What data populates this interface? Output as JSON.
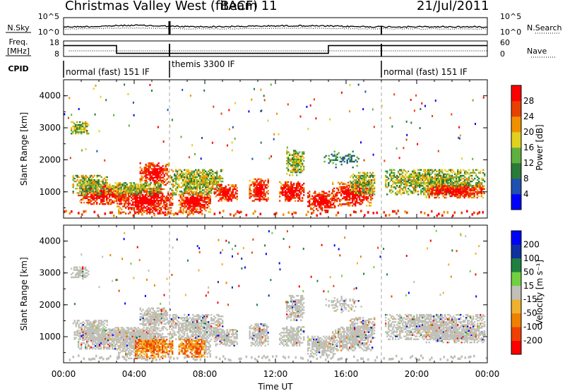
{
  "header": {
    "radar": "Christmas Valley West (fitACF)",
    "beam": "Beam 11",
    "date": "21/Jul/2011"
  },
  "strips": {
    "nsky_label": "N.Sky",
    "nsearch_label": "N.Search",
    "freq_label": "Freq.",
    "freq_unit": "[MHz]",
    "nave_label": "Nave",
    "cpid_label": "CPID",
    "nsky_ticks": [
      "10^5",
      "10^0"
    ],
    "nsearch_ticks": [
      "10^5",
      "10^0"
    ],
    "freq_ticks": [
      "18",
      "8"
    ],
    "nave_ticks": [
      "60",
      "0"
    ],
    "cpid_segments": [
      {
        "start": 0,
        "end": 6,
        "label": "normal (fast) 151 IF"
      },
      {
        "start": 6,
        "end": 18,
        "label": "themis 3300 IF"
      },
      {
        "start": 18,
        "end": 24,
        "label": "normal (fast) 151 IF"
      }
    ],
    "freq_steps": [
      {
        "start": 0,
        "end": 3,
        "value": 15
      },
      {
        "start": 3,
        "end": 15,
        "value": 10
      },
      {
        "start": 15,
        "end": 24,
        "value": 15
      }
    ]
  },
  "chart_data": [
    {
      "type": "heatmap",
      "ylabel": "Slant Range [km]",
      "xlim": [
        0,
        24
      ],
      "ylim": [
        180,
        4500
      ],
      "yticks": [
        "1000",
        "2000",
        "3000",
        "4000"
      ],
      "colorbar_label": "Power [dB]",
      "colorbar_ticks": [
        "28",
        "24",
        "20",
        "16",
        "12",
        "8",
        "4"
      ],
      "colors": [
        "#0000ff",
        "#2050b0",
        "#2a7a3a",
        "#60b040",
        "#e0d020",
        "#f09000",
        "#e84000",
        "#ff0000"
      ]
    },
    {
      "type": "heatmap",
      "ylabel": "Slant Range [km]",
      "xlabel": "Time UT",
      "xlim": [
        0,
        24
      ],
      "ylim": [
        180,
        4500
      ],
      "yticks": [
        "1000",
        "2000",
        "3000",
        "4000"
      ],
      "xticks": [
        "00:00",
        "04:00",
        "08:00",
        "12:00",
        "16:00",
        "20:00",
        "00:00"
      ],
      "colorbar_label": "Velocity [m s⁻¹]",
      "colorbar_ticks": [
        "200",
        "100",
        "50",
        "15",
        "-15",
        "-50",
        "-100",
        "-200"
      ],
      "colors": [
        "#ff0000",
        "#f04000",
        "#f08000",
        "#f0b030",
        "#c0c0b8",
        "#70d040",
        "#208040",
        "#1030a0",
        "#0000ff"
      ]
    }
  ]
}
